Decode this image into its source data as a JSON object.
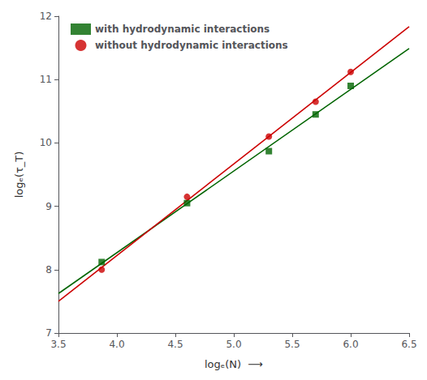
{
  "chart_data": {
    "type": "scatter",
    "x_label": "logₑ(N)  ⟶",
    "y_label": "logₑ(τ_T)",
    "series": [
      {
        "name": "with hydrodynamic interactions",
        "color": "#006400",
        "marker": "square",
        "x": [
          3.87,
          4.6,
          5.3,
          5.7,
          6.0
        ],
        "values": [
          8.12,
          9.05,
          9.87,
          10.45,
          10.9
        ],
        "fit": {
          "x": [
            3.5,
            6.5
          ],
          "values": [
            7.6234,
            11.4903
          ]
        }
      },
      {
        "name": "without hydrodynamic interactions",
        "color": "#cc0000",
        "marker": "circle",
        "x": [
          3.87,
          4.6,
          5.3,
          5.7,
          6.0
        ],
        "values": [
          8.0,
          9.15,
          10.1,
          10.65,
          11.12
        ],
        "fit": {
          "x": [
            3.5,
            6.5
          ],
          "values": [
            7.4998,
            11.8364
          ]
        }
      }
    ],
    "xlim": [
      3.5,
      6.5
    ],
    "xticks": [
      3.5,
      {
        "value": 4,
        "label": "4.0"
      },
      4.5,
      {
        "value": 5,
        "label": "5.0"
      },
      5.5,
      {
        "value": 6,
        "label": "6.0"
      },
      6.5
    ],
    "ylim": [
      7,
      12
    ],
    "yticks": [
      7,
      8,
      9,
      10,
      11,
      12
    ],
    "grid": false,
    "legend": "upper left"
  }
}
